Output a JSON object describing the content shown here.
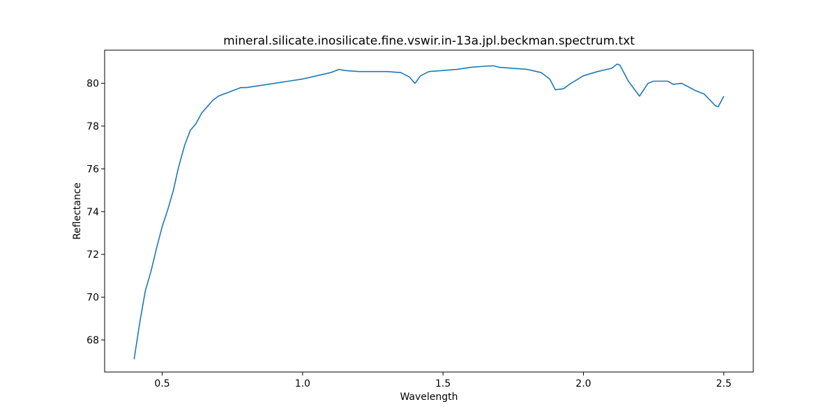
{
  "chart_data": {
    "type": "line",
    "title": "mineral.silicate.inosilicate.fine.vswir.in-13a.jpl.beckman.spectrum.txt",
    "xlabel": "Wavelength",
    "ylabel": "Reflectance",
    "xlim": [
      0.295,
      2.605
    ],
    "ylim": [
      66.5,
      81.55
    ],
    "xticks": [
      0.5,
      1.0,
      1.5,
      2.0,
      2.5
    ],
    "xtick_labels": [
      "0.5",
      "1.0",
      "1.5",
      "2.0",
      "2.5"
    ],
    "yticks": [
      68,
      70,
      72,
      74,
      76,
      78,
      80
    ],
    "ytick_labels": [
      "68",
      "70",
      "72",
      "74",
      "76",
      "78",
      "80"
    ],
    "grid": false,
    "series": [
      {
        "color": "#1f77b4",
        "x": [
          0.4,
          0.42,
          0.44,
          0.46,
          0.48,
          0.5,
          0.52,
          0.54,
          0.555,
          0.565,
          0.58,
          0.6,
          0.62,
          0.64,
          0.66,
          0.68,
          0.7,
          0.72,
          0.74,
          0.76,
          0.78,
          0.8,
          0.85,
          0.9,
          0.95,
          1.0,
          1.05,
          1.1,
          1.13,
          1.15,
          1.2,
          1.25,
          1.3,
          1.35,
          1.38,
          1.4,
          1.42,
          1.45,
          1.5,
          1.55,
          1.6,
          1.65,
          1.68,
          1.7,
          1.75,
          1.8,
          1.85,
          1.88,
          1.9,
          1.93,
          1.95,
          2.0,
          2.05,
          2.1,
          2.12,
          2.13,
          2.16,
          2.2,
          2.23,
          2.25,
          2.3,
          2.32,
          2.35,
          2.4,
          2.43,
          2.47,
          2.48,
          2.5
        ],
        "y": [
          67.1,
          68.8,
          70.3,
          71.2,
          72.3,
          73.3,
          74.1,
          75.0,
          75.9,
          76.4,
          77.1,
          77.8,
          78.1,
          78.6,
          78.9,
          79.2,
          79.4,
          79.5,
          79.6,
          79.7,
          79.8,
          79.8,
          79.9,
          80.0,
          80.1,
          80.2,
          80.35,
          80.5,
          80.65,
          80.6,
          80.55,
          80.55,
          80.55,
          80.5,
          80.3,
          80.0,
          80.35,
          80.55,
          80.6,
          80.65,
          80.75,
          80.8,
          80.82,
          80.75,
          80.7,
          80.65,
          80.5,
          80.2,
          79.7,
          79.75,
          79.95,
          80.35,
          80.55,
          80.7,
          80.9,
          80.85,
          80.1,
          79.4,
          80.0,
          80.1,
          80.1,
          79.95,
          80.0,
          79.65,
          79.5,
          78.95,
          78.9,
          79.4
        ]
      }
    ]
  }
}
